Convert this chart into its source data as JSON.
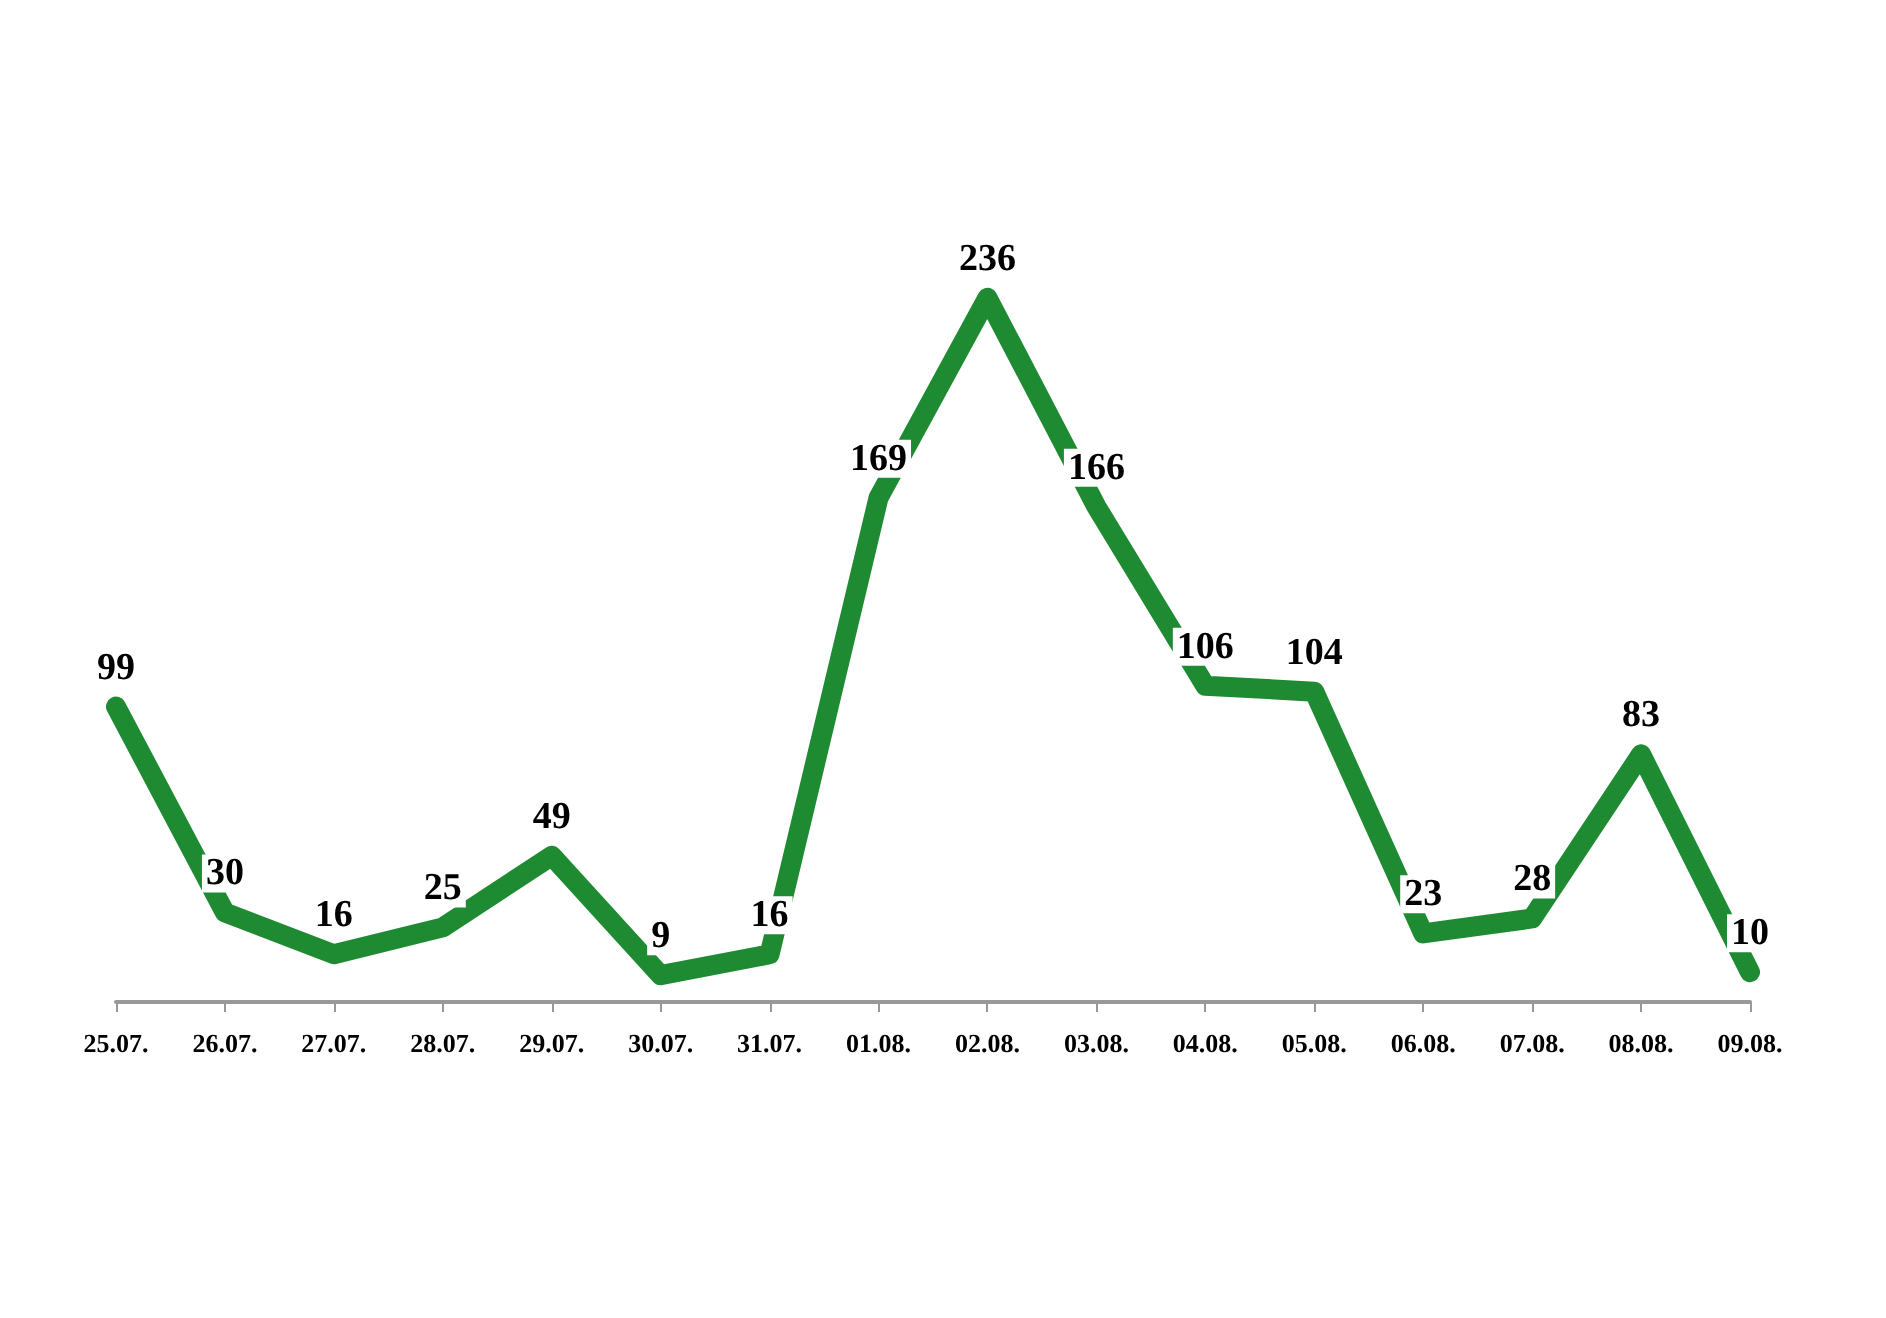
{
  "chart_data": {
    "type": "line",
    "categories": [
      "25.07.",
      "26.07.",
      "27.07.",
      "28.07.",
      "29.07.",
      "30.07.",
      "31.07.",
      "01.08.",
      "02.08.",
      "03.08.",
      "04.08.",
      "05.08.",
      "06.08.",
      "07.08.",
      "08.08.",
      "09.08."
    ],
    "series": [
      {
        "color": "#1e8a32",
        "values": [
          99,
          30,
          16,
          25,
          49,
          9,
          16,
          169,
          236,
          166,
          106,
          104,
          23,
          28,
          83,
          10
        ]
      }
    ],
    "data_labels": true,
    "marker": "none"
  }
}
